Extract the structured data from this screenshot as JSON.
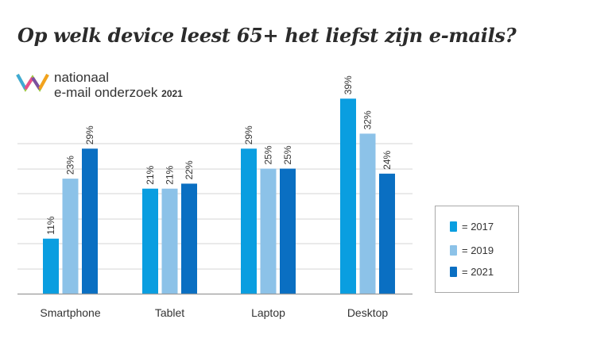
{
  "title": "Op welk device leest 65+ het liefst zijn e-mails?",
  "logo": {
    "line1": "nationaal",
    "line2": "e-mail onderzoek",
    "year": "2021"
  },
  "colors": {
    "s2017": "#0a9ee0",
    "s2019": "#8cc2e8",
    "s2021": "#0a6fc2",
    "grid": "#d4d4d4",
    "axis": "#9a9a9a",
    "text": "#333333"
  },
  "chart_data": {
    "type": "bar",
    "categories": [
      "Smartphone",
      "Tablet",
      "Laptop",
      "Desktop"
    ],
    "series": [
      {
        "name": "2017",
        "values": [
          11,
          21,
          29,
          39
        ],
        "labels": [
          "11%",
          "21%",
          "29%",
          "39%"
        ]
      },
      {
        "name": "2019",
        "values": [
          23,
          21,
          25,
          32
        ],
        "labels": [
          "23%",
          "21%",
          "25%",
          "32%"
        ]
      },
      {
        "name": "2021",
        "values": [
          29,
          22,
          25,
          24
        ],
        "labels": [
          "29%",
          "22%",
          "25%",
          "24%"
        ]
      }
    ],
    "ylim": [
      0,
      40
    ],
    "grid": true,
    "legend_position": "right"
  },
  "legend": [
    {
      "label": "= 2017",
      "color_key": "s2017"
    },
    {
      "label": "= 2019",
      "color_key": "s2019"
    },
    {
      "label": "= 2021",
      "color_key": "s2021"
    }
  ]
}
